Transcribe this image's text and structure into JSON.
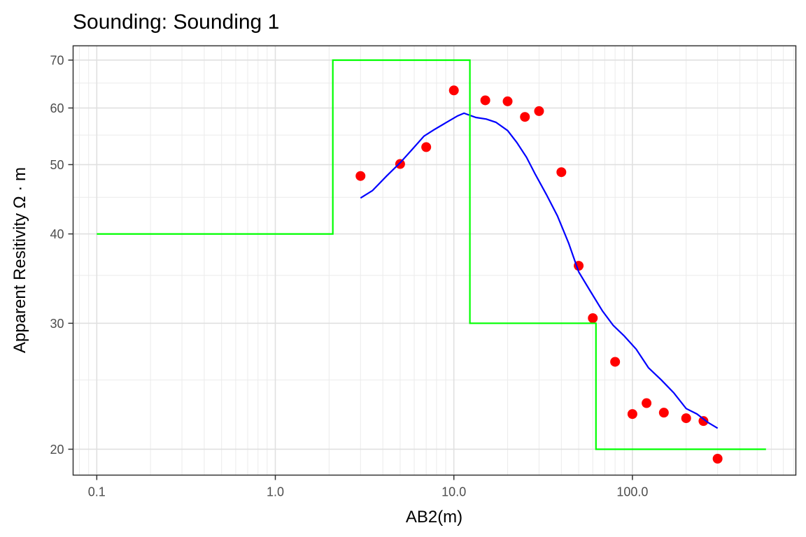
{
  "chart_data": {
    "type": "scatter",
    "title": "Sounding:  Sounding 1",
    "xlabel": "AB2(m)",
    "ylabel": "Apparent Resitivity Ω · m",
    "x_scale": "log10",
    "y_scale": "log10",
    "xlim": [
      0.0737,
      823
    ],
    "ylim": [
      18.4,
      73.3
    ],
    "x_ticks": [
      0.1,
      1.0,
      10.0,
      100.0
    ],
    "x_tick_labels": [
      "0.1",
      "1.0",
      "10.0",
      "100.0"
    ],
    "y_ticks": [
      20,
      30,
      40,
      50,
      60,
      70
    ],
    "y_tick_labels": [
      "20",
      "30",
      "40",
      "50",
      "60",
      "70"
    ],
    "grid": true,
    "legend": "none",
    "series": [
      {
        "kind": "points",
        "color": "#ff0000",
        "x": [
          3,
          5,
          7,
          10,
          15,
          20,
          25,
          30,
          40,
          50,
          60,
          80,
          100,
          120,
          150,
          200,
          250,
          300
        ],
        "y": [
          48.2,
          50.1,
          52.9,
          63.5,
          61.5,
          61.3,
          58.3,
          59.4,
          48.8,
          36.1,
          30.5,
          26.5,
          22.4,
          23.2,
          22.5,
          22.1,
          21.9,
          19.4
        ]
      },
      {
        "kind": "line",
        "color": "#0000ff",
        "x": [
          3,
          3.5,
          4.2,
          5,
          5.8,
          6.8,
          7.7,
          9,
          10.5,
          11.4,
          13.3,
          15.2,
          17.2,
          20,
          22.5,
          25.5,
          28.4,
          33,
          38,
          44,
          50,
          58,
          68,
          78,
          90,
          105,
          123,
          145,
          170,
          200,
          230,
          265,
          300
        ],
        "y": [
          44.9,
          46.0,
          48.2,
          50.3,
          52.4,
          54.8,
          55.9,
          57.2,
          58.5,
          59.0,
          58.2,
          57.9,
          57.3,
          55.8,
          53.7,
          51.2,
          48.6,
          45.4,
          42.4,
          38.8,
          35.4,
          33.3,
          31.2,
          29.8,
          28.8,
          27.6,
          26.0,
          25.0,
          24.0,
          22.8,
          22.4,
          21.8,
          21.4
        ]
      },
      {
        "kind": "step",
        "color": "#00ff00",
        "x": [
          0.1,
          2.1,
          2.1,
          12.3,
          12.3,
          62.5,
          62.5,
          560
        ],
        "y": [
          40,
          40,
          70,
          70,
          30,
          30,
          20,
          20
        ]
      }
    ]
  }
}
